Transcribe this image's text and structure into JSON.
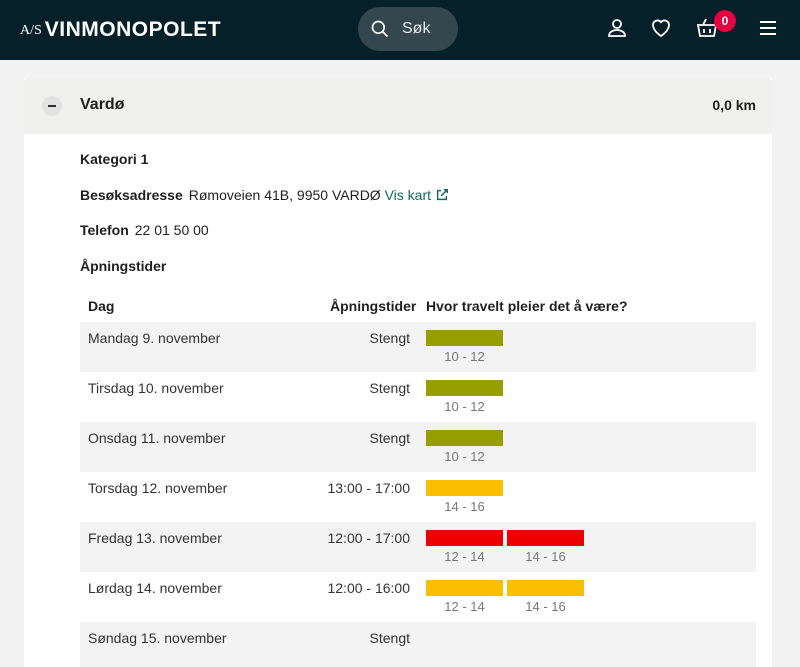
{
  "header": {
    "logo_prefix": "A/S",
    "logo_text": "VINMONOPOLET",
    "search_label": "Søk",
    "cart_count": "0",
    "icons": [
      "search-icon",
      "user-icon",
      "heart-icon",
      "basket-icon",
      "menu-icon"
    ]
  },
  "store": {
    "name": "Vardø",
    "distance": "0,0 km",
    "category": "Kategori 1",
    "address_label": "Besøksadresse",
    "address": "Rømoveien 41B, 9950 VARDØ",
    "map_link": "Vis kart",
    "phone_label": "Telefon",
    "phone": "22 01 50 00",
    "hours_heading": "Åpningstider"
  },
  "table": {
    "headers": [
      "Dag",
      "Åpningstider",
      "Hvor travelt pleier det å være?"
    ],
    "colors": {
      "low": "#95a000",
      "medium": "#fac000",
      "high": "#ee0000"
    },
    "rows": [
      {
        "day": "Mandag 9. november",
        "hours": "Stengt",
        "slots": [
          {
            "label": "10 - 12",
            "level": "low"
          }
        ]
      },
      {
        "day": "Tirsdag 10. november",
        "hours": "Stengt",
        "slots": [
          {
            "label": "10 - 12",
            "level": "low"
          }
        ]
      },
      {
        "day": "Onsdag 11. november",
        "hours": "Stengt",
        "slots": [
          {
            "label": "10 - 12",
            "level": "low"
          }
        ]
      },
      {
        "day": "Torsdag 12. november",
        "hours": "13:00 - 17:00",
        "slots": [
          {
            "label": "14 - 16",
            "level": "medium"
          }
        ]
      },
      {
        "day": "Fredag 13. november",
        "hours": "12:00 - 17:00",
        "slots": [
          {
            "label": "12 - 14",
            "level": "high"
          },
          {
            "label": "14 - 16",
            "level": "high"
          }
        ]
      },
      {
        "day": "Lørdag 14. november",
        "hours": "12:00 - 16:00",
        "slots": [
          {
            "label": "12 - 14",
            "level": "medium"
          },
          {
            "label": "14 - 16",
            "level": "medium"
          }
        ]
      },
      {
        "day": "Søndag 15. november",
        "hours": "Stengt",
        "slots": []
      }
    ]
  }
}
